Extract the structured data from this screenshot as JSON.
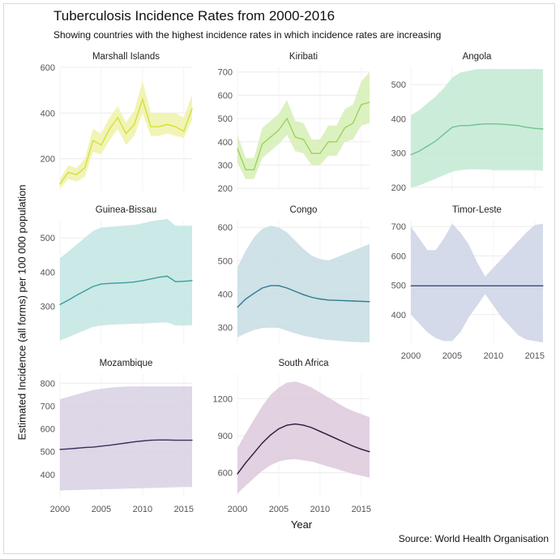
{
  "title": "Tuberculosis Incidence Rates from 2000-2016",
  "subtitle": "Showing countries with the highest incidence rates in which incidence rates are increasing",
  "caption": "Source: World Health Organisation",
  "chart_data": {
    "type": "line",
    "title": "Tuberculosis Incidence Rates from 2000-2016",
    "xlabel": "Year",
    "ylabel": "Estimated Incidence (all forms) per 100 000 population",
    "xlim": [
      2000,
      2016
    ],
    "x_ticks": [
      2000,
      2005,
      2010,
      2015
    ],
    "years": [
      2000,
      2001,
      2002,
      2003,
      2004,
      2005,
      2006,
      2007,
      2008,
      2009,
      2010,
      2011,
      2012,
      2013,
      2014,
      2015,
      2016
    ],
    "panels": [
      {
        "name": "Marshall Islands",
        "color": "#d4e03a",
        "fill": "#eef2a8",
        "ylim": [
          60,
          600
        ],
        "y_ticks": [
          200,
          400,
          600
        ],
        "values": [
          90,
          140,
          130,
          160,
          280,
          260,
          330,
          380,
          310,
          350,
          460,
          340,
          340,
          350,
          340,
          320,
          420
        ],
        "lower": [
          70,
          110,
          100,
          120,
          230,
          220,
          280,
          330,
          260,
          300,
          400,
          300,
          300,
          310,
          300,
          290,
          370
        ],
        "upper": [
          110,
          170,
          160,
          200,
          330,
          310,
          380,
          430,
          360,
          410,
          540,
          400,
          400,
          400,
          400,
          380,
          480
        ]
      },
      {
        "name": "Kiribati",
        "color": "#9bd35a",
        "fill": "#d6efb5",
        "ylim": [
          190,
          720
        ],
        "y_ticks": [
          200,
          300,
          400,
          500,
          600,
          700
        ],
        "values": [
          370,
          280,
          280,
          390,
          420,
          450,
          500,
          420,
          410,
          350,
          350,
          400,
          400,
          460,
          480,
          560,
          570
        ],
        "lower": [
          310,
          240,
          240,
          330,
          360,
          390,
          430,
          360,
          350,
          300,
          300,
          340,
          340,
          400,
          410,
          470,
          480
        ],
        "upper": [
          430,
          330,
          330,
          460,
          490,
          520,
          580,
          490,
          480,
          410,
          410,
          470,
          470,
          540,
          560,
          660,
          700
        ]
      },
      {
        "name": "Angola",
        "color": "#6fc48e",
        "fill": "#c3e9d3",
        "ylim": [
          190,
          550
        ],
        "y_ticks": [
          200,
          300,
          400,
          500
        ],
        "values": [
          295,
          305,
          320,
          335,
          355,
          375,
          380,
          380,
          383,
          385,
          385,
          384,
          382,
          380,
          375,
          372,
          370
        ],
        "lower": [
          200,
          205,
          215,
          225,
          235,
          245,
          250,
          252,
          252,
          252,
          250,
          250,
          250,
          250,
          250,
          250,
          248
        ],
        "upper": [
          410,
          425,
          445,
          465,
          490,
          520,
          535,
          540,
          545,
          545,
          545,
          545,
          545,
          545,
          545,
          545,
          545
        ]
      },
      {
        "name": "Guinea-Bissau",
        "color": "#3a9ea0",
        "fill": "#c2e5e2",
        "ylim": [
          190,
          550
        ],
        "y_ticks": [
          300,
          400,
          500
        ],
        "values": [
          305,
          318,
          332,
          345,
          358,
          365,
          367,
          368,
          369,
          371,
          375,
          380,
          385,
          388,
          372,
          373,
          375
        ],
        "lower": [
          200,
          210,
          220,
          230,
          240,
          244,
          246,
          247,
          248,
          249,
          250,
          251,
          252,
          253,
          244,
          244,
          245
        ],
        "upper": [
          440,
          460,
          480,
          500,
          520,
          530,
          532,
          534,
          536,
          538,
          542,
          548,
          552,
          555,
          535,
          535,
          535
        ]
      },
      {
        "name": "Congo",
        "color": "#2e7b90",
        "fill": "#c5dde3",
        "ylim": [
          250,
          620
        ],
        "y_ticks": [
          300,
          400,
          500,
          600
        ],
        "values": [
          360,
          385,
          402,
          418,
          425,
          425,
          418,
          408,
          398,
          390,
          385,
          382,
          381,
          380,
          379,
          378,
          377
        ],
        "lower": [
          270,
          282,
          292,
          298,
          300,
          298,
          290,
          282,
          275,
          270,
          265,
          262,
          260,
          258,
          256,
          255,
          255
        ],
        "upper": [
          480,
          530,
          570,
          595,
          605,
          600,
          585,
          560,
          535,
          515,
          505,
          500,
          510,
          520,
          530,
          540,
          550
        ]
      },
      {
        "name": "Timor-Leste",
        "color": "#3a4e7a",
        "fill": "#cdd3e5",
        "ylim": [
          300,
          720
        ],
        "y_ticks": [
          400,
          500,
          600,
          700
        ],
        "values": [
          498,
          498,
          498,
          498,
          498,
          498,
          498,
          498,
          498,
          498,
          498,
          498,
          498,
          498,
          498,
          498,
          498
        ],
        "lower": [
          400,
          370,
          340,
          320,
          310,
          310,
          340,
          390,
          430,
          470,
          430,
          390,
          360,
          330,
          315,
          310,
          305
        ],
        "upper": [
          700,
          660,
          620,
          620,
          660,
          710,
          680,
          640,
          580,
          530,
          560,
          590,
          620,
          650,
          680,
          705,
          710
        ]
      },
      {
        "name": "Mozambique",
        "color": "#3b2e5e",
        "fill": "#d8d0e3",
        "ylim": [
          300,
          840
        ],
        "y_ticks": [
          400,
          500,
          600,
          700,
          800
        ],
        "values": [
          510,
          512,
          515,
          518,
          520,
          524,
          528,
          533,
          538,
          543,
          547,
          550,
          551,
          551,
          550,
          550,
          550
        ],
        "lower": [
          330,
          331,
          332,
          333,
          334,
          335,
          336,
          337,
          338,
          339,
          340,
          341,
          342,
          343,
          344,
          345,
          345
        ],
        "upper": [
          730,
          740,
          750,
          760,
          770,
          775,
          780,
          783,
          785,
          786,
          786,
          786,
          786,
          786,
          786,
          786,
          786
        ]
      },
      {
        "name": "South Africa",
        "color": "#2a1a3e",
        "fill": "#dcc9dc",
        "ylim": [
          400,
          1400
        ],
        "y_ticks": [
          600,
          900,
          1200
        ],
        "values": [
          590,
          680,
          760,
          840,
          905,
          955,
          985,
          995,
          985,
          965,
          935,
          905,
          875,
          845,
          815,
          790,
          770
        ],
        "lower": [
          430,
          495,
          555,
          615,
          660,
          690,
          705,
          710,
          700,
          690,
          670,
          650,
          630,
          610,
          590,
          575,
          560
        ],
        "upper": [
          800,
          920,
          1030,
          1140,
          1230,
          1290,
          1330,
          1340,
          1320,
          1290,
          1250,
          1210,
          1170,
          1130,
          1100,
          1075,
          1050
        ]
      }
    ]
  }
}
